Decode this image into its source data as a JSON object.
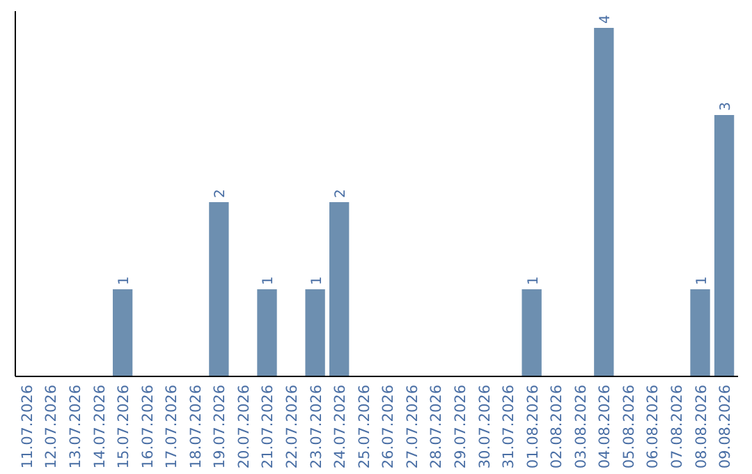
{
  "chart_data": {
    "type": "bar",
    "categories": [
      "11.07.2026",
      "12.07.2026",
      "13.07.2026",
      "14.07.2026",
      "15.07.2026",
      "16.07.2026",
      "17.07.2026",
      "18.07.2026",
      "19.07.2026",
      "20.07.2026",
      "21.07.2026",
      "22.07.2026",
      "23.07.2026",
      "24.07.2026",
      "25.07.2026",
      "26.07.2026",
      "27.07.2026",
      "28.07.2026",
      "29.07.2026",
      "30.07.2026",
      "31.07.2026",
      "01.08.2026",
      "02.08.2026",
      "03.08.2026",
      "04.08.2026",
      "05.08.2026",
      "06.08.2026",
      "07.08.2026",
      "08.08.2026",
      "09.08.2026"
    ],
    "values": [
      0,
      0,
      0,
      0,
      1,
      0,
      0,
      0,
      2,
      0,
      1,
      0,
      1,
      2,
      0,
      0,
      0,
      0,
      0,
      0,
      0,
      1,
      0,
      0,
      4,
      0,
      0,
      0,
      1,
      3
    ],
    "value_labels": [
      null,
      null,
      null,
      null,
      "1",
      null,
      null,
      null,
      "2",
      null,
      "1",
      null,
      "1",
      "2",
      null,
      null,
      null,
      null,
      null,
      null,
      null,
      "1",
      null,
      null,
      "4",
      null,
      null,
      null,
      "1",
      "3"
    ],
    "color": "#6d8fb0",
    "tick_labels": "x"
  }
}
